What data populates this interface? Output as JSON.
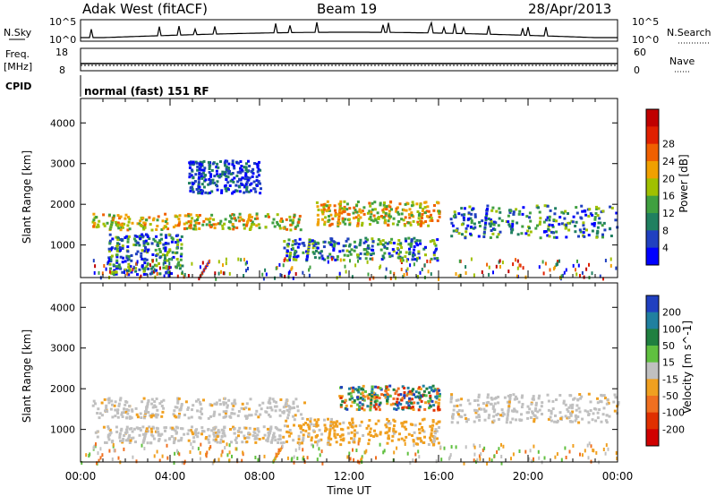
{
  "header": {
    "site": "Adak West (fitACF)",
    "beam": "Beam 19",
    "date": "28/Apr/2013"
  },
  "panel_labels": {
    "nsky": "N.Sky",
    "nsky_hi": "10^5",
    "nsky_lo": "10^0",
    "nsearch": "N.Search",
    "nsearch_hi": "10^5",
    "nsearch_lo": "10^0",
    "freq": "Freq.",
    "freq_unit": "[MHz]",
    "freq_hi": "18",
    "freq_lo": "8",
    "nave": "Nave",
    "nave_hi": "60",
    "nave_lo": "0",
    "cpid": "CPID",
    "mode": "normal (fast) 151 RF"
  },
  "chart_data": [
    {
      "type": "heatmap",
      "name": "Power",
      "ylabel": "Slant Range [km]",
      "xlabel": "",
      "x_ticks": [
        "00:00",
        "04:00",
        "08:00",
        "12:00",
        "16:00",
        "20:00",
        "00:00"
      ],
      "y_ticks": [
        1000,
        2000,
        3000,
        4000
      ],
      "ylim": [
        200,
        4600
      ],
      "xlim_hours": [
        0,
        24
      ],
      "colorbar": {
        "label": "Power [dB]",
        "ticks": [
          "4",
          "8",
          "12",
          "16",
          "20",
          "24",
          "28"
        ],
        "colors": [
          "#0000ff",
          "#2040c0",
          "#208060",
          "#40a040",
          "#a0c000",
          "#f0a000",
          "#f06000",
          "#e02000",
          "#c00000"
        ]
      },
      "bands": [
        {
          "t0": 0.5,
          "t1": 9.8,
          "r0": 1400,
          "r1": 1800,
          "level": "high"
        },
        {
          "t0": 1.2,
          "t1": 4.5,
          "r0": 300,
          "r1": 1300,
          "level": "mid"
        },
        {
          "t0": 4.8,
          "t1": 8.0,
          "r0": 2300,
          "r1": 3100,
          "level": "low"
        },
        {
          "t0": 9.0,
          "t1": 16.0,
          "r0": 650,
          "r1": 1200,
          "level": "mid"
        },
        {
          "t0": 10.5,
          "t1": 16.0,
          "r0": 1500,
          "r1": 2100,
          "level": "high"
        },
        {
          "t0": 16.5,
          "t1": 24.0,
          "r0": 1200,
          "r1": 2000,
          "level": "mid"
        }
      ]
    },
    {
      "type": "heatmap",
      "name": "Velocity",
      "ylabel": "Slant Range [km]",
      "xlabel": "Time UT",
      "x_ticks": [
        "00:00",
        "04:00",
        "08:00",
        "12:00",
        "16:00",
        "20:00",
        "00:00"
      ],
      "y_ticks": [
        1000,
        2000,
        3000,
        4000
      ],
      "ylim": [
        200,
        4600
      ],
      "xlim_hours": [
        0,
        24
      ],
      "colorbar": {
        "label": "Velocity [m s^-1]",
        "ticks": [
          "200",
          "100",
          "50",
          "15",
          "-15",
          "-50",
          "-100",
          "-200"
        ],
        "colors": [
          "#2040c0",
          "#2080a0",
          "#208040",
          "#60c040",
          "#c0c0c0",
          "#f0a020",
          "#f07020",
          "#e03000",
          "#d00000"
        ]
      },
      "bands": [
        {
          "t0": 0.5,
          "t1": 10.0,
          "r0": 1300,
          "r1": 1800,
          "level": "gray"
        },
        {
          "t0": 0.5,
          "t1": 9.0,
          "r0": 700,
          "r1": 1100,
          "level": "gray"
        },
        {
          "t0": 9.0,
          "t1": 16.0,
          "r0": 650,
          "r1": 1300,
          "level": "orange"
        },
        {
          "t0": 11.5,
          "t1": 16.0,
          "r0": 1500,
          "r1": 2100,
          "level": "mixed"
        },
        {
          "t0": 16.5,
          "t1": 24.0,
          "r0": 1200,
          "r1": 1900,
          "level": "gray"
        }
      ]
    }
  ]
}
